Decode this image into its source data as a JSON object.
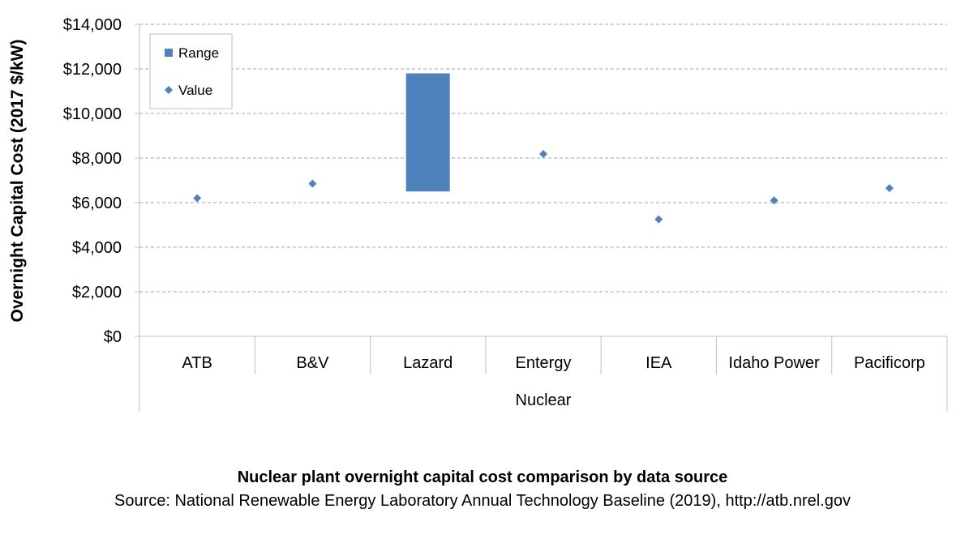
{
  "chart_data": {
    "type": "range-and-point",
    "ylabel": "Overnight Capital Cost (2017 $/kW)",
    "xlabel": "Nuclear",
    "ylim": [
      0,
      14000
    ],
    "ytick_step": 2000,
    "ytick_labels": [
      "$0",
      "$2,000",
      "$4,000",
      "$6,000",
      "$8,000",
      "$10,000",
      "$12,000",
      "$14,000"
    ],
    "grid": "horizontal-dashed",
    "legend_position": "top-left",
    "legend": [
      {
        "label": "Range",
        "marker": "square"
      },
      {
        "label": "Value",
        "marker": "diamond"
      }
    ],
    "categories": [
      "ATB",
      "B&V",
      "Lazard",
      "Entergy",
      "IEA",
      "Idaho Power",
      "Pacificorp"
    ],
    "series": [
      {
        "name": "Range",
        "ranges": [
          null,
          null,
          [
            6500,
            11800
          ],
          null,
          null,
          null,
          null
        ]
      },
      {
        "name": "Value",
        "values": [
          6200,
          6850,
          null,
          8180,
          5250,
          6100,
          6650
        ]
      }
    ],
    "colors": {
      "marker": "#4f81bd",
      "grid": "#a6a6a6",
      "axis": "#bfbfbf"
    }
  },
  "caption": {
    "title": "Nuclear plant overnight capital cost comparison by data source",
    "source": "Source: National Renewable Energy Laboratory Annual Technology Baseline (2019), http://atb.nrel.gov"
  }
}
